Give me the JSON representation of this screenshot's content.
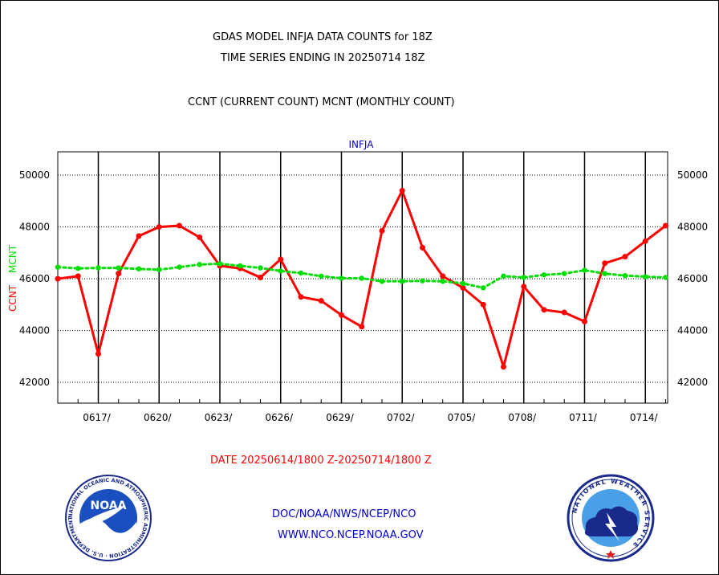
{
  "header": {
    "title_line1": "GDAS MODEL INFJA DATA COUNTS for 18Z",
    "title_line2": "TIME SERIES ENDING IN 20250714 18Z",
    "subtitle": "CCNT (CURRENT COUNT) MCNT (MONTHLY COUNT)"
  },
  "footer": {
    "date_range": "DATE 20250614/1800 Z-20250714/1800 Z",
    "org_line1": "DOC/NOAA/NWS/NCEP/NCO",
    "org_line2": "WWW.NCO.NCEP.NOAA.GOV"
  },
  "logos": {
    "noaa_text": "NOAA",
    "noaa_ring_text": "NATIONAL OCEANIC AND ATMOSPHERIC ADMINISTRATION · U.S. DEPARTMENT OF COMMERCE",
    "nws_ring_text": "NATIONAL WEATHER SERVICE"
  },
  "colors": {
    "ccnt": "#ff0000",
    "mcnt": "#00dd00",
    "panel_label": "#0000cc",
    "footer_blue": "#0000cc",
    "date_red": "#ff0000"
  },
  "chart_data": {
    "type": "line",
    "panel_label": "INFJA",
    "ylabel_ccnt": "CCNT",
    "ylabel_mcnt": "MCNT",
    "ylim": [
      41200,
      50900
    ],
    "yticks": [
      42000,
      44000,
      46000,
      48000,
      50000
    ],
    "ytick_labels": [
      "42000",
      "44000",
      "46000",
      "48000",
      "50000"
    ],
    "xlim": [
      0,
      30.1
    ],
    "x_tick_labels": [
      "0617/",
      "0620/",
      "0623/",
      "0626/",
      "0629/",
      "0702/",
      "0705/",
      "0708/",
      "0711/",
      "0714/"
    ],
    "x_tick_positions": [
      2,
      5,
      8,
      11,
      14,
      17,
      20,
      23,
      26,
      29
    ],
    "grid": true,
    "series": [
      {
        "name": "CCNT",
        "style": "solid",
        "x": [
          0,
          1,
          2,
          3,
          4,
          5,
          6,
          7,
          8,
          9,
          10,
          11,
          12,
          13,
          14,
          15,
          16,
          17,
          18,
          19,
          20,
          21,
          22,
          23,
          24,
          25,
          26,
          27,
          28,
          29,
          30
        ],
        "values": [
          46000,
          46100,
          43100,
          46200,
          47650,
          48000,
          48050,
          47600,
          46500,
          46400,
          46050,
          46750,
          45300,
          45150,
          44600,
          44150,
          47850,
          49400,
          47200,
          46100,
          45650,
          45000,
          42600,
          45700,
          44800,
          44700,
          44350,
          46600,
          46850,
          47450,
          48050
        ]
      },
      {
        "name": "MCNT",
        "style": "dotted",
        "x": [
          0,
          1,
          2,
          3,
          4,
          5,
          6,
          7,
          8,
          9,
          10,
          11,
          12,
          13,
          14,
          15,
          16,
          17,
          18,
          19,
          20,
          21,
          22,
          23,
          24,
          25,
          26,
          27,
          28,
          29,
          30
        ],
        "values": [
          46450,
          46400,
          46420,
          46420,
          46380,
          46350,
          46450,
          46550,
          46580,
          46500,
          46420,
          46300,
          46220,
          46100,
          46020,
          46020,
          45900,
          45900,
          45920,
          45900,
          45820,
          45650,
          46100,
          46050,
          46150,
          46200,
          46330,
          46200,
          46120,
          46080,
          46050
        ]
      }
    ]
  }
}
